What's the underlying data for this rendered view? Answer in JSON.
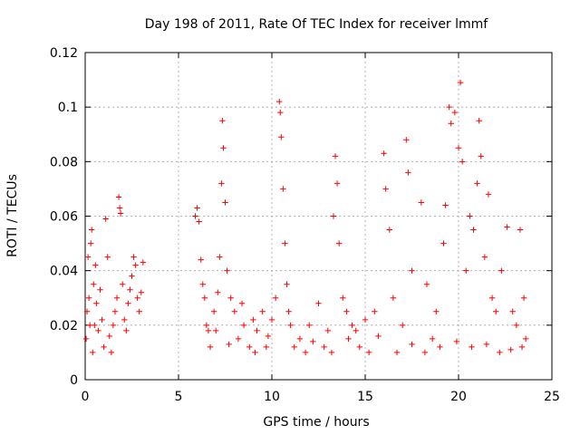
{
  "chart_data": {
    "type": "scatter",
    "title": "Day 198 of 2011, Rate Of TEC Index for receiver lmmf",
    "xlabel": "GPS time / hours",
    "ylabel": "ROTI / TECUs",
    "xlim": [
      0,
      25
    ],
    "ylim": [
      0,
      0.12
    ],
    "xticks": [
      "0",
      "5",
      "10",
      "15",
      "20",
      "25"
    ],
    "yticks": [
      "0",
      "0.02",
      "0.04",
      "0.06",
      "0.08",
      "0.1",
      "0.12"
    ],
    "grid": true,
    "marker": "+",
    "color": "#ff0000",
    "series": [
      {
        "points": [
          [
            0.05,
            0.015
          ],
          [
            0.1,
            0.025
          ],
          [
            0.15,
            0.045
          ],
          [
            0.2,
            0.03
          ],
          [
            0.25,
            0.02
          ],
          [
            0.3,
            0.05
          ],
          [
            0.35,
            0.055
          ],
          [
            0.4,
            0.01
          ],
          [
            0.45,
            0.035
          ],
          [
            0.5,
            0.02
          ],
          [
            0.55,
            0.042
          ],
          [
            0.6,
            0.028
          ],
          [
            0.7,
            0.018
          ],
          [
            0.8,
            0.033
          ],
          [
            0.9,
            0.022
          ],
          [
            1.0,
            0.012
          ],
          [
            1.1,
            0.059
          ],
          [
            1.2,
            0.045
          ],
          [
            1.3,
            0.016
          ],
          [
            1.4,
            0.01
          ],
          [
            1.5,
            0.02
          ],
          [
            1.6,
            0.025
          ],
          [
            1.7,
            0.03
          ],
          [
            1.8,
            0.067
          ],
          [
            1.85,
            0.063
          ],
          [
            1.9,
            0.061
          ],
          [
            2.0,
            0.035
          ],
          [
            2.1,
            0.022
          ],
          [
            2.2,
            0.018
          ],
          [
            2.3,
            0.028
          ],
          [
            2.4,
            0.033
          ],
          [
            2.5,
            0.038
          ],
          [
            2.6,
            0.045
          ],
          [
            2.7,
            0.042
          ],
          [
            2.8,
            0.03
          ],
          [
            2.9,
            0.025
          ],
          [
            3.0,
            0.032
          ],
          [
            3.1,
            0.043
          ],
          [
            5.9,
            0.06
          ],
          [
            6.0,
            0.063
          ],
          [
            6.1,
            0.058
          ],
          [
            6.2,
            0.044
          ],
          [
            6.3,
            0.035
          ],
          [
            6.4,
            0.03
          ],
          [
            6.5,
            0.02
          ],
          [
            6.7,
            0.012
          ],
          [
            6.9,
            0.025
          ],
          [
            7.0,
            0.018
          ],
          [
            7.1,
            0.032
          ],
          [
            7.2,
            0.045
          ],
          [
            7.3,
            0.072
          ],
          [
            7.35,
            0.095
          ],
          [
            7.4,
            0.085
          ],
          [
            7.5,
            0.065
          ],
          [
            7.6,
            0.04
          ],
          [
            7.8,
            0.03
          ],
          [
            8.0,
            0.025
          ],
          [
            8.2,
            0.015
          ],
          [
            8.5,
            0.02
          ],
          [
            8.8,
            0.012
          ],
          [
            9.0,
            0.022
          ],
          [
            9.2,
            0.018
          ],
          [
            9.5,
            0.025
          ],
          [
            9.8,
            0.016
          ],
          [
            10.0,
            0.022
          ],
          [
            10.2,
            0.03
          ],
          [
            10.4,
            0.102
          ],
          [
            10.45,
            0.098
          ],
          [
            10.5,
            0.089
          ],
          [
            10.6,
            0.07
          ],
          [
            10.7,
            0.05
          ],
          [
            10.8,
            0.035
          ],
          [
            11.0,
            0.02
          ],
          [
            11.5,
            0.015
          ],
          [
            12.0,
            0.02
          ],
          [
            12.5,
            0.028
          ],
          [
            13.0,
            0.018
          ],
          [
            13.3,
            0.06
          ],
          [
            13.4,
            0.082
          ],
          [
            13.5,
            0.072
          ],
          [
            13.6,
            0.05
          ],
          [
            13.8,
            0.03
          ],
          [
            14.0,
            0.025
          ],
          [
            14.3,
            0.02
          ],
          [
            14.5,
            0.018
          ],
          [
            15.0,
            0.022
          ],
          [
            15.5,
            0.025
          ],
          [
            16.0,
            0.083
          ],
          [
            16.1,
            0.07
          ],
          [
            16.3,
            0.055
          ],
          [
            16.5,
            0.03
          ],
          [
            17.0,
            0.02
          ],
          [
            17.2,
            0.088
          ],
          [
            17.3,
            0.076
          ],
          [
            17.5,
            0.04
          ],
          [
            18.0,
            0.065
          ],
          [
            18.3,
            0.035
          ],
          [
            18.8,
            0.025
          ],
          [
            19.2,
            0.05
          ],
          [
            19.3,
            0.064
          ],
          [
            19.5,
            0.1
          ],
          [
            19.6,
            0.094
          ],
          [
            19.8,
            0.098
          ],
          [
            20.0,
            0.085
          ],
          [
            20.1,
            0.109
          ],
          [
            20.2,
            0.08
          ],
          [
            20.4,
            0.04
          ],
          [
            20.6,
            0.06
          ],
          [
            20.8,
            0.055
          ],
          [
            21.0,
            0.072
          ],
          [
            21.1,
            0.095
          ],
          [
            21.2,
            0.082
          ],
          [
            21.4,
            0.045
          ],
          [
            21.6,
            0.068
          ],
          [
            21.8,
            0.03
          ],
          [
            22.0,
            0.025
          ],
          [
            22.3,
            0.04
          ],
          [
            22.6,
            0.056
          ],
          [
            22.9,
            0.025
          ],
          [
            23.1,
            0.02
          ],
          [
            23.3,
            0.055
          ],
          [
            23.5,
            0.03
          ],
          [
            23.6,
            0.015
          ],
          [
            6.6,
            0.018
          ],
          [
            7.7,
            0.013
          ],
          [
            8.4,
            0.028
          ],
          [
            9.1,
            0.01
          ],
          [
            9.7,
            0.012
          ],
          [
            10.9,
            0.025
          ],
          [
            11.2,
            0.012
          ],
          [
            11.8,
            0.01
          ],
          [
            12.2,
            0.014
          ],
          [
            12.8,
            0.012
          ],
          [
            13.2,
            0.01
          ],
          [
            14.1,
            0.015
          ],
          [
            14.7,
            0.012
          ],
          [
            15.2,
            0.01
          ],
          [
            15.7,
            0.016
          ],
          [
            16.7,
            0.01
          ],
          [
            17.5,
            0.013
          ],
          [
            18.2,
            0.01
          ],
          [
            18.6,
            0.015
          ],
          [
            19.0,
            0.012
          ],
          [
            19.9,
            0.014
          ],
          [
            20.7,
            0.012
          ],
          [
            21.5,
            0.013
          ],
          [
            22.2,
            0.01
          ],
          [
            22.8,
            0.011
          ],
          [
            23.4,
            0.012
          ]
        ]
      }
    ]
  }
}
